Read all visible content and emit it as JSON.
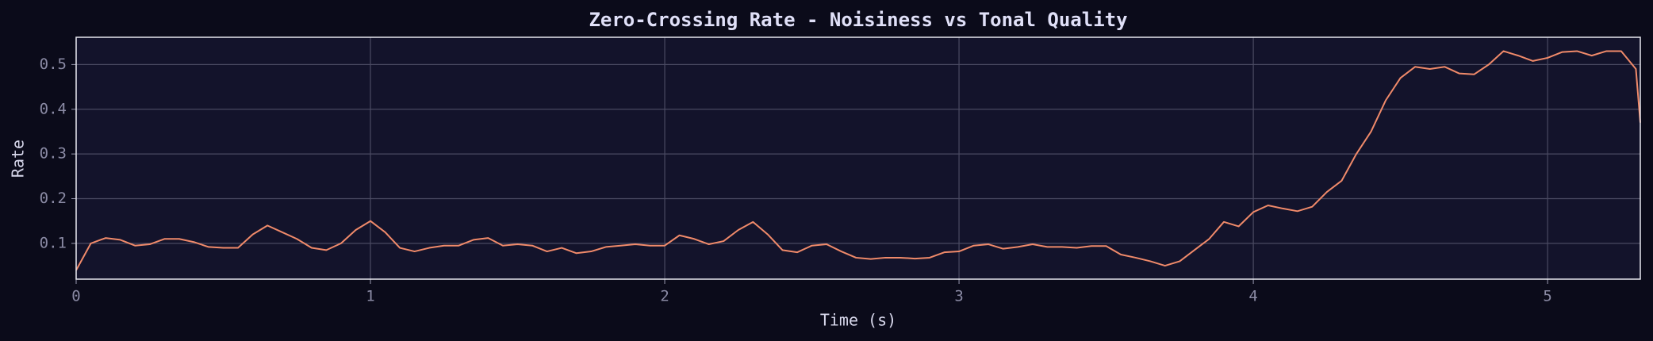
{
  "chart_data": {
    "type": "line",
    "title": "Zero-Crossing Rate - Noisiness vs Tonal Quality",
    "x_label": "Time (s)",
    "y_label": "Rate",
    "x": [
      0,
      0.05,
      0.1,
      0.15,
      0.2,
      0.25,
      0.3,
      0.35,
      0.4,
      0.45,
      0.5,
      0.55,
      0.6,
      0.65,
      0.7,
      0.75,
      0.8,
      0.85,
      0.9,
      0.95,
      1,
      1.05,
      1.1,
      1.15,
      1.2,
      1.25,
      1.3,
      1.35,
      1.4,
      1.45,
      1.5,
      1.55,
      1.6,
      1.65,
      1.7,
      1.75,
      1.8,
      1.85,
      1.9,
      1.95,
      2,
      2.05,
      2.1,
      2.15,
      2.2,
      2.25,
      2.3,
      2.35,
      2.4,
      2.45,
      2.5,
      2.55,
      2.6,
      2.65,
      2.7,
      2.75,
      2.8,
      2.85,
      2.9,
      2.95,
      3,
      3.05,
      3.1,
      3.15,
      3.2,
      3.25,
      3.3,
      3.35,
      3.4,
      3.45,
      3.5,
      3.55,
      3.6,
      3.65,
      3.7,
      3.75,
      3.8,
      3.85,
      3.9,
      3.95,
      4,
      4.05,
      4.1,
      4.15,
      4.2,
      4.25,
      4.3,
      4.35,
      4.4,
      4.45,
      4.5,
      4.55,
      4.6,
      4.65,
      4.7,
      4.75,
      4.8,
      4.85,
      4.9,
      4.95,
      5,
      5.05,
      5.1,
      5.15,
      5.2,
      5.25,
      5.3,
      5.315
    ],
    "series": [
      {
        "name": "Rate",
        "color": "#f08a6a",
        "values": [
          0.04,
          0.1,
          0.112,
          0.108,
          0.095,
          0.098,
          0.11,
          0.11,
          0.103,
          0.092,
          0.09,
          0.09,
          0.12,
          0.14,
          0.125,
          0.11,
          0.09,
          0.085,
          0.1,
          0.13,
          0.15,
          0.125,
          0.09,
          0.082,
          0.09,
          0.095,
          0.095,
          0.108,
          0.112,
          0.095,
          0.098,
          0.095,
          0.082,
          0.09,
          0.078,
          0.082,
          0.092,
          0.095,
          0.098,
          0.095,
          0.095,
          0.118,
          0.11,
          0.098,
          0.105,
          0.13,
          0.148,
          0.12,
          0.085,
          0.08,
          0.095,
          0.098,
          0.082,
          0.068,
          0.065,
          0.068,
          0.068,
          0.066,
          0.068,
          0.08,
          0.082,
          0.095,
          0.098,
          0.088,
          0.092,
          0.098,
          0.092,
          0.092,
          0.09,
          0.094,
          0.094,
          0.075,
          0.068,
          0.06,
          0.05,
          0.06,
          0.085,
          0.11,
          0.148,
          0.138,
          0.17,
          0.185,
          0.178,
          0.172,
          0.182,
          0.215,
          0.24,
          0.3,
          0.35,
          0.42,
          0.47,
          0.495,
          0.49,
          0.495,
          0.48,
          0.478,
          0.5,
          0.53,
          0.52,
          0.508,
          0.515,
          0.528,
          0.53,
          0.52,
          0.53,
          0.53,
          0.49,
          0.37
        ]
      }
    ],
    "xlim": [
      0,
      5.315
    ],
    "ylim": [
      0.02,
      0.561
    ],
    "xticks": [
      0,
      1,
      2,
      3,
      4,
      5
    ],
    "yticks": [
      0.1,
      0.2,
      0.3,
      0.4,
      0.5
    ],
    "grid": true
  }
}
